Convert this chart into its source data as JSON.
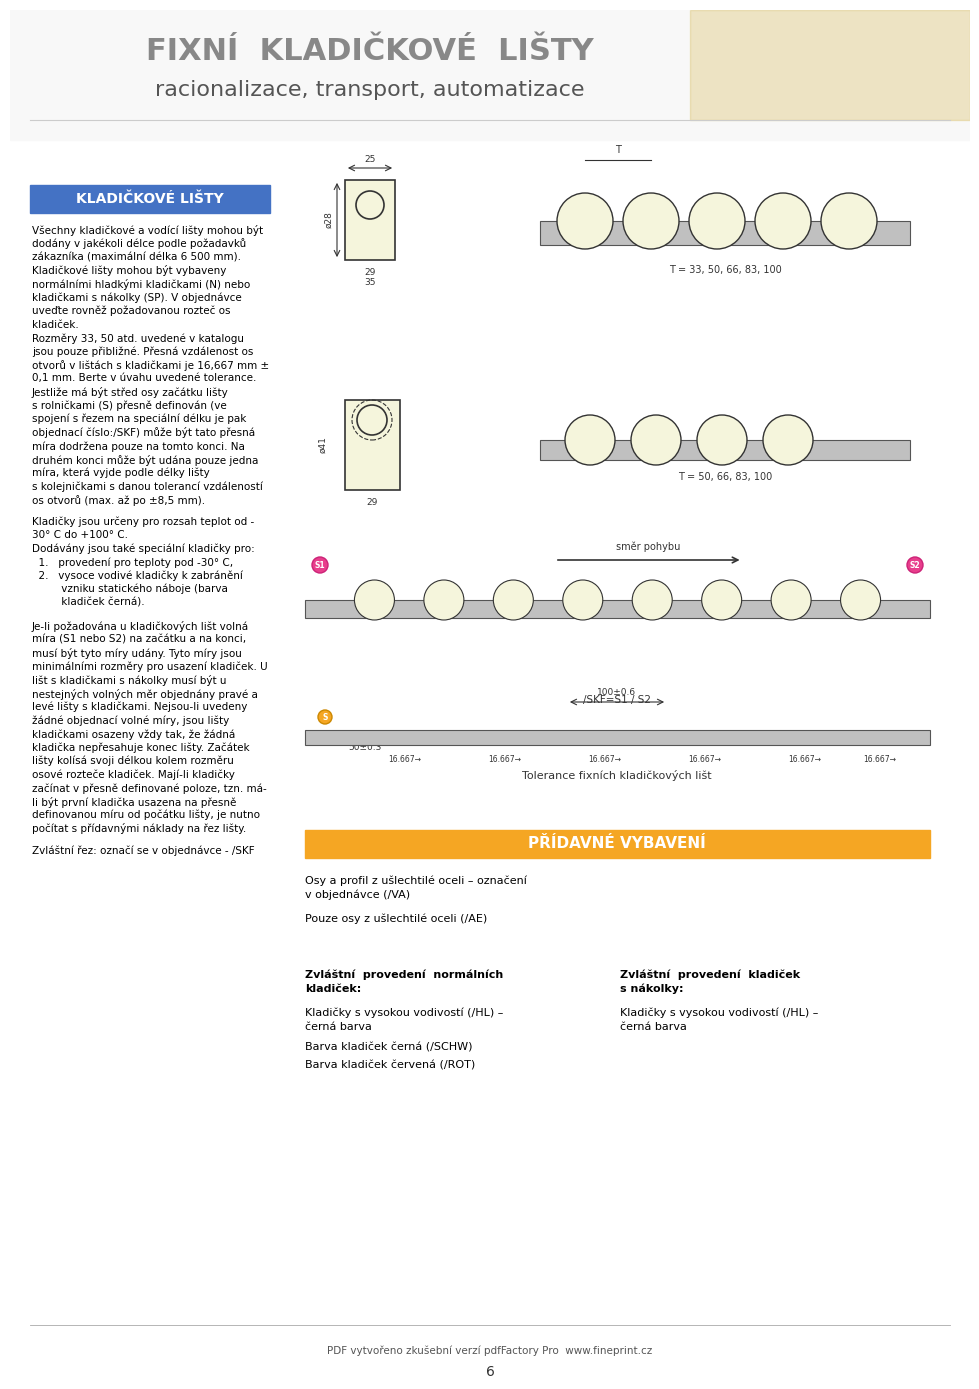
{
  "title_main": "FIXNÍ  KLADIČKOVÉ  LIŠTY",
  "title_sub": "racionalizace, transport, automatizace",
  "bg_color": "#ffffff",
  "header_bar_color": "#4472c4",
  "header_bar_text": "KLADIČKOVÉ LIŠTY",
  "header_bar_text_color": "#ffffff",
  "section2_bar_color": "#f5a623",
  "section2_bar_text": "PŘÍDAVNÉ VYBAVENÍ",
  "section2_bar_text_color": "#ffffff",
  "body_text_left": "Všechny kladičkové a vodící lišty mohou být\ndodány v jakékoli délce podle požadavků\nzákazníka (maximální délka 6 500 mm).\nKladičkové lišty mohou být vybaveny\nnormálními hladkými kladičkami (N) nebo\nkladičkami s nákolky (SP). V objednávce\nuveďte rovněž požadovanou rozteč os\nkladiček.\nRozměry 33, 50 atd. uvedené v katalogu\njsou pouze přibližné. Přesná vzdálenost os\notvorů v lištách s kladičkami je 16,667 mm ±\n0,1 mm. Berte v úvahu uvedené tolerance.\nJestliže má být střed osy začátku lišty\ns rolničkami (S) přesně definován (ve\nspojení s řezem na speciální délku je pak\nobjednací číslo:/SKF) může být tato přesná\nmíra dodržena pouze na tomto konci. Na\ndruhém konci může být udána pouze jedna\nmíra, která vyjde podle délky lišty\ns kolejničkami s danou tolerancí vzdáleností\nos otvorů (max. až po ±8,5 mm).",
  "body_text_left2": "Kladičky jsou určeny pro rozsah teplot od -\n30° C do +100° C.\nDodávány jsou také speciální kladičky pro:\n  1.   provedení pro teploty pod -30° C,\n  2.   vysoce vodivé kladičky k zabránění\n         vzniku statického náboje (barva\n         kladiček černá).",
  "body_text_left3": "Je-li požadována u kladičkových lišt volná\nmíra (S1 nebo S2) na začátku a na konci,\nmusí být tyto míry udány. Tyto míry jsou\nminimálními rozměry pro usazení kladiček. U\nlišt s kladičkami s nákolky musí být u\nnestejných volných měr objednány pravé a\nlevé lišty s kladičkami. Nejsou-li uvedeny\nžádné objednací volné míry, jsou lišty\nkladičkami osazeny vždy tak, že žádná\nkladička nepřesahuje konec lišty. Začátek\nlišty kolísá svoji délkou kolem rozměru\nosové rozteče kladiček. Mají-li kladičky\nzačínat v přesně definované poloze, tzn. má-\nli být první kladička usazena na přesně\ndefinovanou míru od počátku lišty, je nutno\npočítat s přídavnými náklady na řez lišty.",
  "body_text_left4": "Zvláštní řez: označí se v objednávce - /SKF",
  "bottom_left_text1": "Osy a profil z ušlechtilé oceli – označení\nv objednávce (/VA)",
  "bottom_left_text2": "Pouze osy z ušlechtilé oceli (/AE)",
  "col1_header": "Zvláštní  provedení  normálních\nkladiček:",
  "col1_item1": "Kladičky s vysokou vodivostí (/HL) –\nčerná barva",
  "col1_item2": "Barva kladiček černá (/SCHW)",
  "col1_item3": "Barva kladiček červená (/ROT)",
  "col2_header": "Zvláštní  provedení  kladiček\ns nákolky:",
  "col2_item1": "Kladičky s vysokou vodivostí (/HL) –\nčerná barva",
  "footer_text": "PDF vytvořeno zkušební verzí pdfFactory Pro  www.fineprint.cz",
  "footer_link": "www.fineprint.cz",
  "page_number": "6",
  "diagram_label1": "T = 33, 50, 66, 83, 100",
  "diagram_label2": "T = 50, 66, 83, 100",
  "diagram_label3": "směr pohybu",
  "diagram_label4": "/SKF=S1 / S2",
  "diagram_label5": "Tolerance fixních kladičkových lišt"
}
